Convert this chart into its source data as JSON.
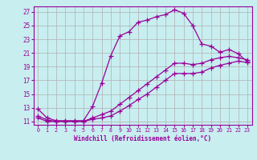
{
  "xlabel": "Windchill (Refroidissement éolien,°C)",
  "bg_color": "#c8eef0",
  "grid_color": "#b0b0b0",
  "line_color": "#990099",
  "xlim": [
    -0.5,
    23.5
  ],
  "ylim": [
    10.5,
    27.8
  ],
  "xticks": [
    0,
    1,
    2,
    3,
    4,
    5,
    6,
    7,
    8,
    9,
    10,
    11,
    12,
    13,
    14,
    15,
    16,
    17,
    18,
    19,
    20,
    21,
    22,
    23
  ],
  "yticks": [
    11,
    13,
    15,
    17,
    19,
    21,
    23,
    25,
    27
  ],
  "curve1_x": [
    0,
    1,
    2,
    3,
    4,
    5,
    6,
    7,
    8,
    9,
    10,
    11,
    12,
    13,
    14,
    15,
    16,
    17,
    18,
    19,
    20,
    21,
    22,
    23
  ],
  "curve1_y": [
    12.8,
    11.5,
    11.1,
    11.1,
    11.1,
    11.1,
    13.2,
    16.6,
    20.6,
    23.5,
    24.1,
    25.5,
    25.8,
    26.3,
    26.6,
    27.3,
    26.8,
    25.0,
    22.3,
    22.0,
    21.1,
    21.5,
    20.9,
    19.7
  ],
  "curve2_x": [
    0,
    1,
    2,
    3,
    4,
    5,
    6,
    7,
    8,
    9,
    10,
    11,
    12,
    13,
    14,
    15,
    16,
    17,
    18,
    19,
    20,
    21,
    22,
    23
  ],
  "curve2_y": [
    11.8,
    11.2,
    11.0,
    11.0,
    11.0,
    11.0,
    11.5,
    12.0,
    12.5,
    13.5,
    14.5,
    15.5,
    16.5,
    17.5,
    18.5,
    19.5,
    19.5,
    19.3,
    19.5,
    20.0,
    20.3,
    20.5,
    20.3,
    20.0
  ],
  "curve3_x": [
    0,
    1,
    2,
    3,
    4,
    5,
    6,
    7,
    8,
    9,
    10,
    11,
    12,
    13,
    14,
    15,
    16,
    17,
    18,
    19,
    20,
    21,
    22,
    23
  ],
  "curve3_y": [
    11.5,
    11.0,
    11.0,
    11.0,
    11.0,
    11.0,
    11.3,
    11.5,
    11.8,
    12.5,
    13.3,
    14.2,
    15.0,
    16.0,
    17.0,
    18.0,
    18.0,
    18.0,
    18.2,
    18.8,
    19.2,
    19.5,
    19.8,
    19.6
  ]
}
